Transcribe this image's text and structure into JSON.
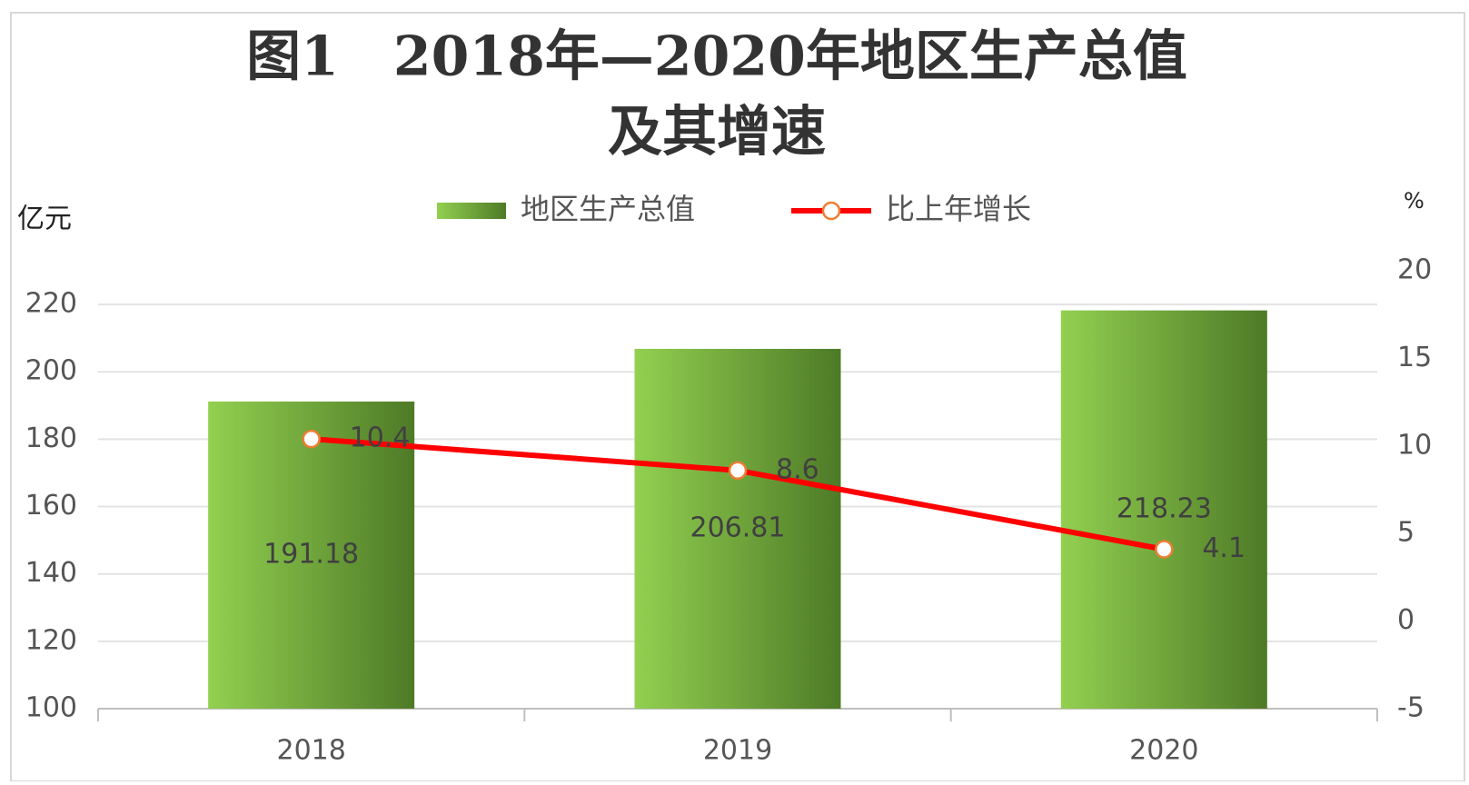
{
  "chart_data": {
    "type": "bar",
    "title": [
      "图1　2018年—2020年地区生产总值",
      "及其增速"
    ],
    "y_label": "亿元",
    "y2_label": "%",
    "categories": [
      "2018",
      "2019",
      "2020"
    ],
    "series": [
      {
        "name": "地区生产总值",
        "type": "bar",
        "color": "#92d050",
        "values": [
          191.18,
          206.81,
          218.23
        ],
        "value_labels": [
          "191.18",
          "206.81",
          "218.23"
        ]
      },
      {
        "name": "比上年增长",
        "type": "line",
        "axis": "y2",
        "color": "#ff0000",
        "marker_color": "#ed7d31",
        "values": [
          10.4,
          8.6,
          4.1
        ],
        "value_labels": [
          "10.4",
          "8.6",
          "4.1"
        ]
      }
    ],
    "ylim": [
      100,
      230
    ],
    "yticks": [
      100,
      120,
      140,
      160,
      180,
      200,
      220
    ],
    "y2lim": [
      -5,
      20
    ],
    "y2ticks": [
      -5,
      0,
      5,
      10,
      15,
      20
    ],
    "grid": true,
    "legend": "top"
  }
}
